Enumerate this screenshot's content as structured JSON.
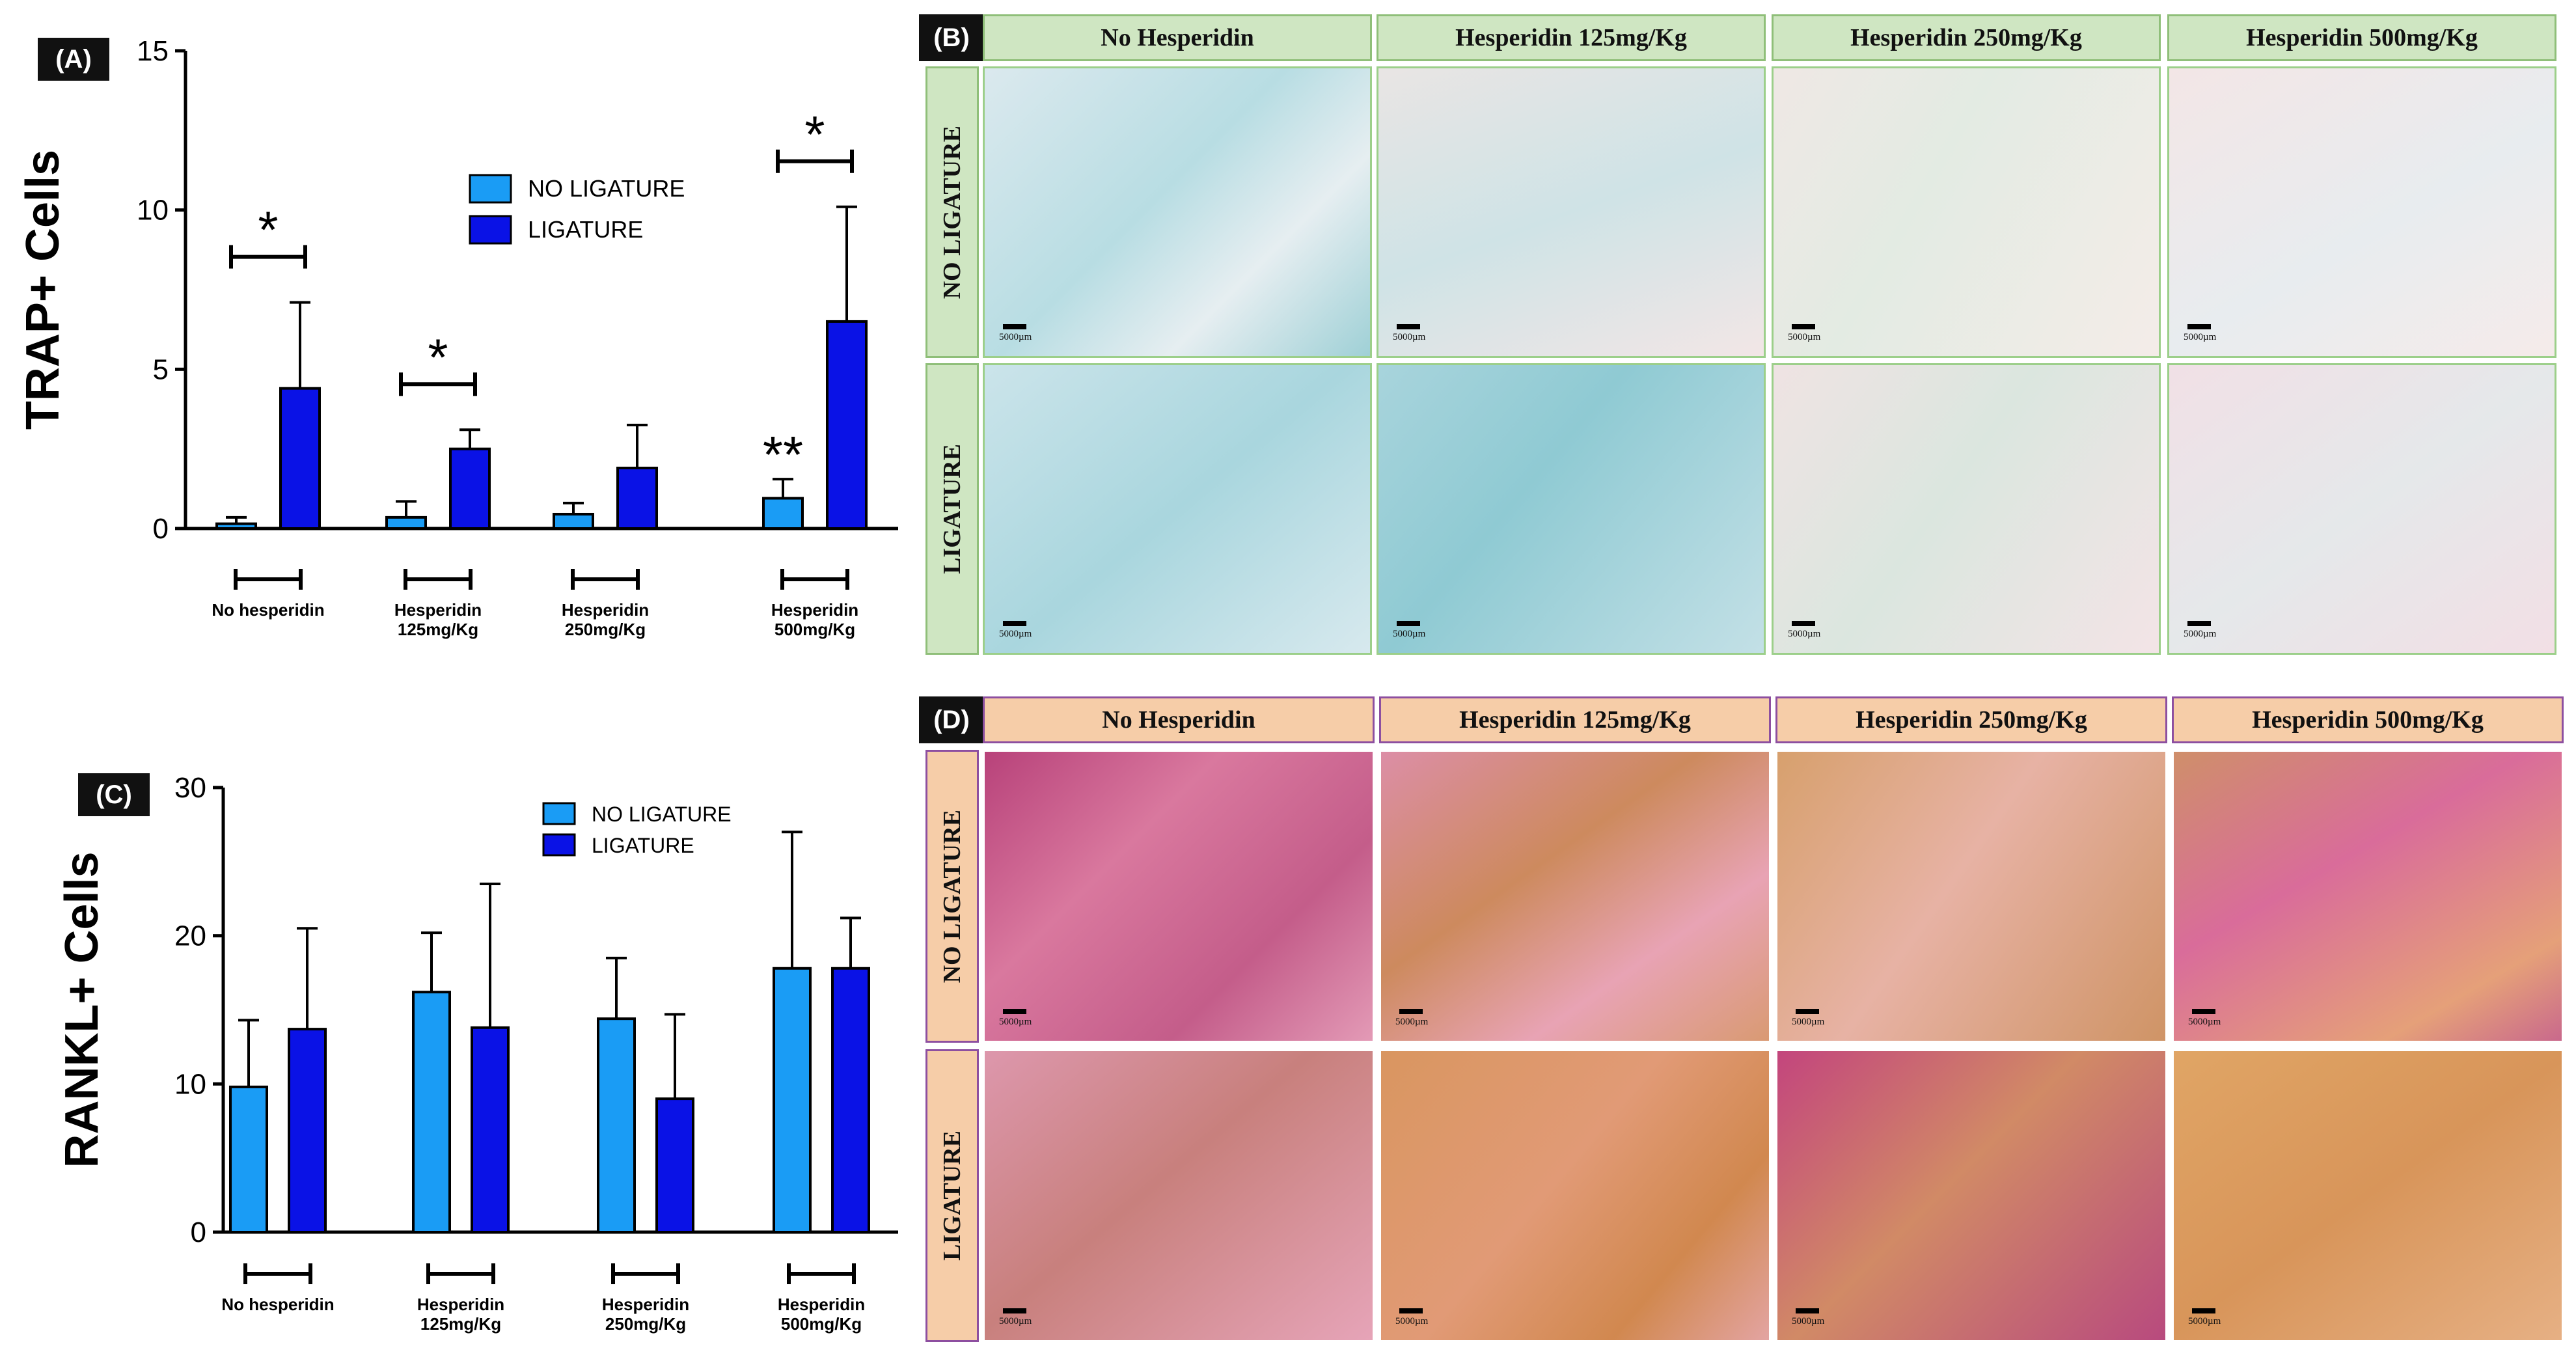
{
  "panels": {
    "A": {
      "tag": "(A)"
    },
    "B": {
      "tag": "(B)"
    },
    "C": {
      "tag": "(C)"
    },
    "D": {
      "tag": "(D)"
    }
  },
  "colors": {
    "no_ligature": "#1a9cf5",
    "ligature": "#0a12e6",
    "panel_b_header_bg": "#cfe6c2",
    "panel_d_header_bg": "#f6cda8"
  },
  "chart_data": [
    {
      "panel": "A",
      "type": "bar",
      "ylabel": "TRAP+ Cells",
      "ylim": [
        0,
        15
      ],
      "yticks": [
        "0",
        "5",
        "10",
        "15"
      ],
      "categories": [
        "No hesperidin",
        "Hesperidin 125mg/Kg",
        "Hesperidin 250mg/Kg",
        "Hesperidin 500mg/Kg"
      ],
      "legend_position": "upper-middle",
      "series": [
        {
          "name": "NO LIGATURE",
          "values": [
            0.15,
            0.35,
            0.45,
            0.95
          ],
          "errors": [
            0.2,
            0.5,
            0.35,
            0.6
          ]
        },
        {
          "name": "LIGATURE",
          "values": [
            4.4,
            2.5,
            1.9,
            6.5
          ],
          "errors": [
            2.7,
            0.6,
            1.35,
            3.6
          ]
        }
      ],
      "annotations": [
        {
          "text": "*",
          "category": 0,
          "type": "bracket"
        },
        {
          "text": "*",
          "category": 1,
          "type": "bracket"
        },
        {
          "text": "**",
          "category": 3,
          "type": "over-bar"
        },
        {
          "text": "*",
          "category": 3,
          "type": "bracket"
        }
      ]
    },
    {
      "panel": "C",
      "type": "bar",
      "ylabel": "RANKL+ Cells",
      "ylim": [
        0,
        30
      ],
      "yticks": [
        "0",
        "10",
        "20",
        "30"
      ],
      "categories": [
        "No hesperidin",
        "Hesperidin 125mg/Kg",
        "Hesperidin 250mg/Kg",
        "Hesperidin 500mg/Kg"
      ],
      "legend_position": "upper-middle",
      "series": [
        {
          "name": "NO LIGATURE",
          "values": [
            9.8,
            16.2,
            14.4,
            17.8
          ],
          "errors": [
            4.5,
            4.0,
            4.1,
            9.2
          ]
        },
        {
          "name": "LIGATURE",
          "values": [
            13.7,
            13.8,
            9.0,
            17.8
          ],
          "errors": [
            6.8,
            9.7,
            5.7,
            3.4
          ]
        }
      ]
    }
  ],
  "micrographs": {
    "B": {
      "columns": [
        "No Hesperidin",
        "Hesperidin 125mg/Kg",
        "Hesperidin 250mg/Kg",
        "Hesperidin 500mg/Kg"
      ],
      "rows": [
        "NO LIGATURE",
        "LIGATURE"
      ],
      "scale_label": "5000µm"
    },
    "D": {
      "columns": [
        "No Hesperidin",
        "Hesperidin 125mg/Kg",
        "Hesperidin 250mg/Kg",
        "Hesperidin 500mg/Kg"
      ],
      "rows": [
        "NO LIGATURE",
        "LIGATURE"
      ],
      "scale_label": "5000µm"
    }
  }
}
